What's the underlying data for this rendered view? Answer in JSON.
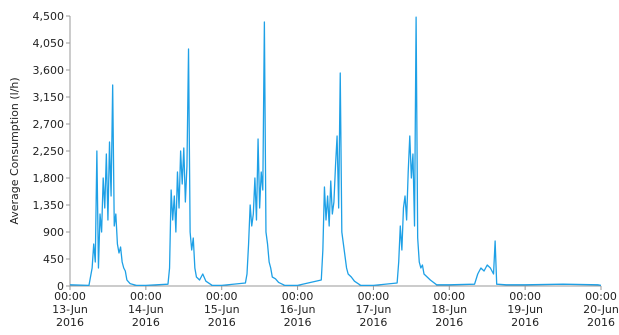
{
  "chart_data": {
    "type": "line",
    "y_label": "Average Consumption (l/h)",
    "color": "#1ea0e6",
    "x": [
      "2016-06-13T00:00",
      "2016-06-13T06:00",
      "2016-06-13T07:00",
      "2016-06-13T07:30",
      "2016-06-13T08:00",
      "2016-06-13T08:30",
      "2016-06-13T09:00",
      "2016-06-13T09:30",
      "2016-06-13T10:00",
      "2016-06-13T10:30",
      "2016-06-13T11:00",
      "2016-06-13T11:30",
      "2016-06-13T12:00",
      "2016-06-13T12:30",
      "2016-06-13T13:00",
      "2016-06-13T13:30",
      "2016-06-13T14:00",
      "2016-06-13T14:30",
      "2016-06-13T15:00",
      "2016-06-13T15:30",
      "2016-06-13T16:00",
      "2016-06-13T16:30",
      "2016-06-13T17:00",
      "2016-06-13T17:30",
      "2016-06-13T18:00",
      "2016-06-13T19:00",
      "2016-06-13T21:00",
      "2016-06-14T00:00",
      "2016-06-14T07:00",
      "2016-06-14T07:30",
      "2016-06-14T08:00",
      "2016-06-14T08:30",
      "2016-06-14T09:00",
      "2016-06-14T09:30",
      "2016-06-14T10:00",
      "2016-06-14T10:30",
      "2016-06-14T11:00",
      "2016-06-14T11:30",
      "2016-06-14T12:00",
      "2016-06-14T12:30",
      "2016-06-14T13:00",
      "2016-06-14T13:30",
      "2016-06-14T14:00",
      "2016-06-14T14:30",
      "2016-06-14T15:00",
      "2016-06-14T15:30",
      "2016-06-14T16:00",
      "2016-06-14T17:00",
      "2016-06-14T18:00",
      "2016-06-14T19:00",
      "2016-06-14T21:00",
      "2016-06-15T00:00",
      "2016-06-15T07:30",
      "2016-06-15T08:00",
      "2016-06-15T08:30",
      "2016-06-15T09:00",
      "2016-06-15T09:30",
      "2016-06-15T10:00",
      "2016-06-15T10:30",
      "2016-06-15T11:00",
      "2016-06-15T11:30",
      "2016-06-15T12:00",
      "2016-06-15T12:30",
      "2016-06-15T13:00",
      "2016-06-15T13:30",
      "2016-06-15T14:00",
      "2016-06-15T14:30",
      "2016-06-15T15:00",
      "2016-06-15T15:30",
      "2016-06-15T16:00",
      "2016-06-15T17:00",
      "2016-06-15T18:00",
      "2016-06-15T20:00",
      "2016-06-16T00:00",
      "2016-06-16T07:30",
      "2016-06-16T08:00",
      "2016-06-16T08:30",
      "2016-06-16T09:00",
      "2016-06-16T09:30",
      "2016-06-16T10:00",
      "2016-06-16T10:30",
      "2016-06-16T11:00",
      "2016-06-16T11:30",
      "2016-06-16T12:00",
      "2016-06-16T12:30",
      "2016-06-16T13:00",
      "2016-06-16T13:30",
      "2016-06-16T14:00",
      "2016-06-16T14:30",
      "2016-06-16T15:00",
      "2016-06-16T15:30",
      "2016-06-16T16:00",
      "2016-06-16T17:00",
      "2016-06-16T18:00",
      "2016-06-16T20:00",
      "2016-06-17T00:00",
      "2016-06-17T07:30",
      "2016-06-17T08:00",
      "2016-06-17T08:30",
      "2016-06-17T09:00",
      "2016-06-17T09:30",
      "2016-06-17T10:00",
      "2016-06-17T10:30",
      "2016-06-17T11:00",
      "2016-06-17T11:30",
      "2016-06-17T12:00",
      "2016-06-17T12:30",
      "2016-06-17T13:00",
      "2016-06-17T13:30",
      "2016-06-17T14:00",
      "2016-06-17T14:30",
      "2016-06-17T15:00",
      "2016-06-17T15:30",
      "2016-06-17T16:00",
      "2016-06-17T17:00",
      "2016-06-17T18:00",
      "2016-06-17T20:00",
      "2016-06-18T00:00",
      "2016-06-18T08:00",
      "2016-06-18T09:00",
      "2016-06-18T10:00",
      "2016-06-18T11:00",
      "2016-06-18T12:00",
      "2016-06-18T13:00",
      "2016-06-18T14:00",
      "2016-06-18T14:30",
      "2016-06-18T15:00",
      "2016-06-18T18:00",
      "2016-06-19T00:00",
      "2016-06-19T12:00",
      "2016-06-19T23:00",
      "2016-06-20T00:00"
    ],
    "values": [
      20,
      10,
      300,
      700,
      400,
      2250,
      300,
      1200,
      900,
      1800,
      1300,
      2200,
      1100,
      2400,
      1500,
      3350,
      1000,
      1200,
      700,
      550,
      650,
      400,
      300,
      250,
      100,
      40,
      10,
      10,
      30,
      300,
      1600,
      1100,
      1500,
      900,
      1900,
      1300,
      2250,
      1700,
      2300,
      1400,
      2000,
      3950,
      900,
      600,
      800,
      300,
      150,
      100,
      200,
      80,
      10,
      10,
      50,
      200,
      700,
      1350,
      1000,
      1200,
      1800,
      1100,
      2450,
      1300,
      1900,
      1600,
      4400,
      900,
      700,
      400,
      300,
      150,
      120,
      60,
      10,
      10,
      100,
      600,
      1650,
      1100,
      1500,
      1000,
      1750,
      1200,
      1400,
      2000,
      2500,
      1300,
      3550,
      900,
      700,
      500,
      300,
      200,
      150,
      80,
      10,
      10,
      50,
      400,
      1000,
      600,
      1300,
      1500,
      1100,
      1900,
      2500,
      1800,
      2200,
      1000,
      4480,
      800,
      400,
      300,
      350,
      200,
      150,
      100,
      20,
      20,
      30,
      200,
      300,
      250,
      350,
      300,
      200,
      750,
      30,
      20,
      20,
      30,
      20,
      10
    ],
    "ylim": [
      0,
      4500
    ],
    "yticks": [
      0,
      450,
      900,
      {
        "value": 1350,
        "label": "1,350"
      },
      {
        "value": 1800,
        "label": "1,800"
      },
      {
        "value": 2250,
        "label": "2,250"
      },
      {
        "value": 2700,
        "label": "2,700"
      },
      {
        "value": 3150,
        "label": "3,150"
      },
      {
        "value": 3600,
        "label": "3,600"
      },
      {
        "value": 4050,
        "label": "4,050"
      },
      {
        "value": 4500,
        "label": "4,500"
      }
    ],
    "xlim": [
      "2016-06-13T00:00",
      "2016-06-20T00:00"
    ],
    "xticks": [
      {
        "value": "2016-06-13T00:00",
        "label": "00:00\n13-Jun\n2016"
      },
      {
        "value": "2016-06-14T00:00",
        "label": "00:00\n14-Jun\n2016"
      },
      {
        "value": "2016-06-15T00:00",
        "label": "00:00\n15-Jun\n2016"
      },
      {
        "value": "2016-06-16T00:00",
        "label": "00:00\n16-Jun\n2016"
      },
      {
        "value": "2016-06-17T00:00",
        "label": "00:00\n17-Jun\n2016"
      },
      {
        "value": "2016-06-18T00:00",
        "label": "00:00\n18-Jun\n2016"
      },
      {
        "value": "2016-06-19T00:00",
        "label": "00:00\n19-Jun\n2016"
      },
      {
        "value": "2016-06-20T00:00",
        "label": "00:00\n20-Jun\n2016"
      }
    ]
  }
}
